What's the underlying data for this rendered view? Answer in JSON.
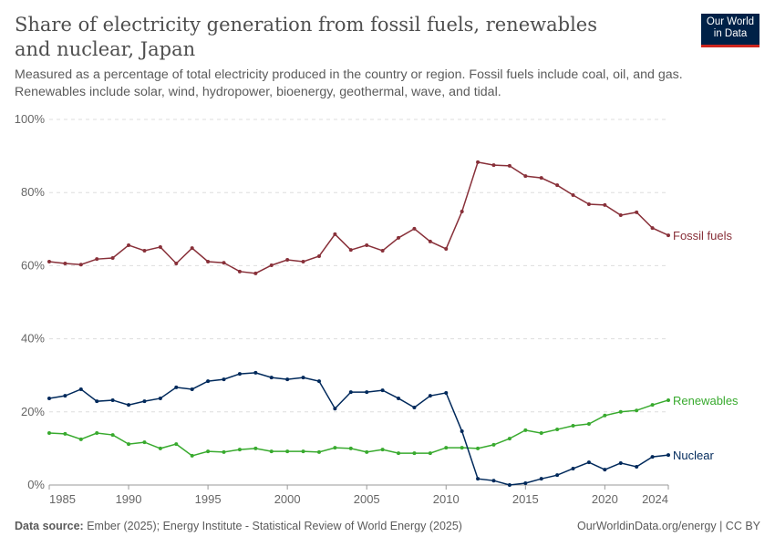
{
  "header": {
    "title": "Share of electricity generation from fossil fuels, renewables and nuclear, Japan",
    "subtitle": "Measured as a percentage of total electricity produced in the country or region. Fossil fuels include coal, oil, and gas. Renewables include solar, wind, hydropower, bioenergy, geothermal, wave, and tidal.",
    "logo": "Our World in Data"
  },
  "footer": {
    "source_label": "Data source:",
    "source": "Ember (2025); Energy Institute - Statistical Review of World Energy (2025)",
    "credit": "OurWorldinData.org/energy | CC BY"
  },
  "chart_data": {
    "type": "line",
    "x": [
      1985,
      1986,
      1987,
      1988,
      1989,
      1990,
      1991,
      1992,
      1993,
      1994,
      1995,
      1996,
      1997,
      1998,
      1999,
      2000,
      2001,
      2002,
      2003,
      2004,
      2005,
      2006,
      2007,
      2008,
      2009,
      2010,
      2011,
      2012,
      2013,
      2014,
      2015,
      2016,
      2017,
      2018,
      2019,
      2020,
      2021,
      2022,
      2023,
      2024
    ],
    "xticks": [
      "1985",
      "1990",
      "1995",
      "2000",
      "2005",
      "2010",
      "2015",
      "2020",
      "2024"
    ],
    "yticks": [
      "0%",
      "20%",
      "40%",
      "60%",
      "80%",
      "100%"
    ],
    "ylim": [
      0,
      100
    ],
    "xlim": [
      1985,
      2024
    ],
    "grid": "horizontal dashed",
    "legend": "inline-right",
    "series": [
      {
        "name": "Fossil fuels",
        "color": "#883039",
        "values": [
          61.1,
          60.6,
          60.3,
          61.8,
          62.1,
          65.6,
          64.1,
          65.1,
          60.6,
          64.8,
          61.1,
          60.8,
          58.4,
          57.9,
          60.1,
          61.6,
          61.1,
          62.6,
          68.6,
          64.3,
          65.6,
          64.1,
          67.6,
          70.1,
          66.6,
          64.6,
          74.8,
          88.3,
          87.5,
          87.3,
          84.5,
          84.0,
          82.0,
          79.3,
          76.8,
          76.6,
          73.8,
          74.6,
          70.3,
          68.3
        ]
      },
      {
        "name": "Renewables",
        "color": "#38aa2e",
        "values": [
          14.2,
          14.0,
          12.5,
          14.2,
          13.7,
          11.2,
          11.7,
          10.0,
          11.2,
          8.0,
          9.2,
          9.0,
          9.7,
          10.0,
          9.2,
          9.2,
          9.2,
          9.0,
          10.2,
          10.0,
          9.0,
          9.7,
          8.7,
          8.7,
          8.7,
          10.2,
          10.2,
          10.0,
          11.0,
          12.7,
          15.0,
          14.2,
          15.2,
          16.2,
          16.7,
          19.0,
          20.0,
          20.4,
          21.9,
          23.2
        ]
      },
      {
        "name": "Nuclear",
        "color": "#00295b",
        "values": [
          23.7,
          24.4,
          26.2,
          22.9,
          23.2,
          21.9,
          22.9,
          23.7,
          26.7,
          26.2,
          28.4,
          28.9,
          30.4,
          30.7,
          29.4,
          28.9,
          29.4,
          28.4,
          20.9,
          25.4,
          25.4,
          25.9,
          23.7,
          21.2,
          24.4,
          25.2,
          14.7,
          1.7,
          1.2,
          0.0,
          0.5,
          1.7,
          2.7,
          4.5,
          6.2,
          4.2,
          6.0,
          5.0,
          7.7,
          8.2
        ]
      }
    ]
  }
}
